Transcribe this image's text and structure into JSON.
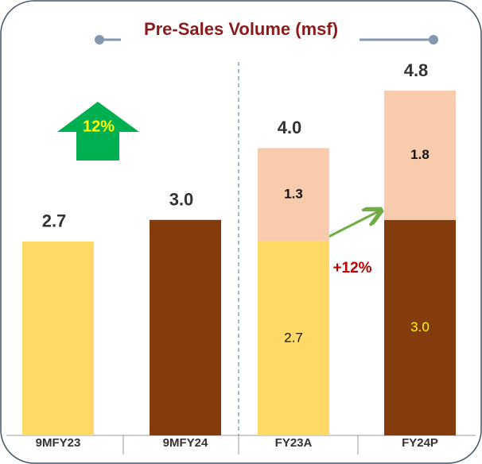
{
  "chart_data": {
    "type": "stacked-bar",
    "title": "Pre-Sales Volume (msf)",
    "categories": [
      "9MFY23",
      "9MFY24",
      "FY23A",
      "FY24P"
    ],
    "series": [
      {
        "colors": [
          "#FFD966",
          "#843C0C",
          "#FFD966",
          "#843C0C"
        ],
        "values": [
          2.7,
          3.0,
          2.7,
          3.0
        ],
        "value_labels": [
          null,
          null,
          "2.7",
          "3.0"
        ]
      },
      {
        "color": "#F8CBAD",
        "values": [
          null,
          null,
          1.3,
          1.8
        ],
        "value_labels": [
          null,
          null,
          "1.3",
          "1.8"
        ]
      }
    ],
    "totals": [
      2.7,
      3.0,
      4.0,
      4.8
    ],
    "total_labels": [
      "2.7",
      "3.0",
      "4.0",
      "4.8"
    ],
    "annotations": [
      "12%",
      "+12%"
    ]
  }
}
